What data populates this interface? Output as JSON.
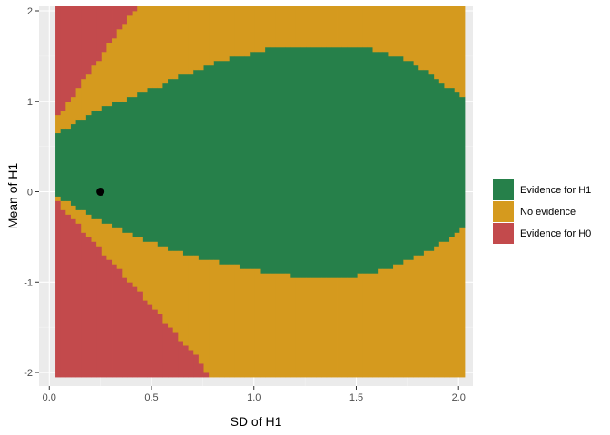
{
  "chart_data": {
    "type": "heatmap",
    "xlabel": "SD of H1",
    "ylabel": "Mean of H1",
    "xlim": [
      -0.05,
      2.07
    ],
    "ylim": [
      -2.15,
      2.05
    ],
    "x_ticks": [
      0.0,
      0.5,
      1.0,
      1.5,
      2.0
    ],
    "x_tick_labels": [
      "0.0",
      "0.5",
      "1.0",
      "1.5",
      "2.0"
    ],
    "y_ticks": [
      -2,
      -1,
      0,
      1,
      2
    ],
    "y_tick_labels": [
      "-2",
      "-1",
      "0",
      "1",
      "2"
    ],
    "grid": true,
    "legend_position": "right",
    "tile_grid": {
      "x_range": [
        0.03,
        2.03
      ],
      "y_range": [
        -2.05,
        2.05
      ],
      "columns": 80,
      "rows": 82
    },
    "categories": [
      {
        "key": "h1",
        "label": "Evidence for H1",
        "color": "#26804a"
      },
      {
        "key": "none",
        "label": "No evidence",
        "color": "#d59a1e"
      },
      {
        "key": "h0",
        "label": "Evidence for H0",
        "color": "#c34a4c"
      }
    ],
    "region_boundaries": {
      "h1_upper": {
        "sd": [
          0.03,
          0.05,
          0.1,
          0.15,
          0.2,
          0.25,
          0.3,
          0.35,
          0.4,
          0.45,
          0.5,
          0.55,
          0.6,
          0.7,
          0.8,
          0.9,
          1.0,
          1.05,
          1.1,
          1.2,
          1.3,
          1.4,
          1.5,
          1.6,
          1.65,
          1.7,
          1.75,
          1.8,
          1.85,
          1.9,
          1.95,
          2.03
        ],
        "mean": [
          0.65,
          0.68,
          0.73,
          0.8,
          0.86,
          0.92,
          0.96,
          1.01,
          1.05,
          1.1,
          1.14,
          1.18,
          1.24,
          1.33,
          1.42,
          1.48,
          1.54,
          1.57,
          1.6,
          1.61,
          1.61,
          1.61,
          1.61,
          1.57,
          1.53,
          1.49,
          1.45,
          1.38,
          1.32,
          1.25,
          1.16,
          1.02
        ]
      },
      "h1_lower": {
        "sd": [
          0.03,
          0.05,
          0.1,
          0.15,
          0.2,
          0.25,
          0.3,
          0.35,
          0.4,
          0.45,
          0.5,
          0.55,
          0.6,
          0.7,
          0.8,
          0.9,
          1.0,
          1.05,
          1.1,
          1.2,
          1.3,
          1.4,
          1.5,
          1.55,
          1.6,
          1.65,
          1.7,
          1.75,
          1.8,
          1.85,
          1.9,
          1.95,
          2.03
        ],
        "mean": [
          -0.03,
          -0.06,
          -0.12,
          -0.19,
          -0.26,
          -0.33,
          -0.38,
          -0.43,
          -0.47,
          -0.51,
          -0.56,
          -0.6,
          -0.63,
          -0.7,
          -0.76,
          -0.81,
          -0.85,
          -0.88,
          -0.9,
          -0.93,
          -0.93,
          -0.93,
          -0.93,
          -0.9,
          -0.88,
          -0.85,
          -0.81,
          -0.76,
          -0.71,
          -0.66,
          -0.6,
          -0.52,
          -0.38
        ]
      },
      "h0_upper": {
        "sd": [
          0.03,
          0.05,
          0.1,
          0.15,
          0.2,
          0.25,
          0.3,
          0.35,
          0.4,
          0.45,
          0.46
        ],
        "mean": [
          0.79,
          0.85,
          1.01,
          1.17,
          1.33,
          1.49,
          1.65,
          1.81,
          1.97,
          2.05,
          2.05
        ]
      },
      "h0_lower": {
        "sd": [
          0.03,
          0.05,
          0.1,
          0.15,
          0.2,
          0.25,
          0.3,
          0.35,
          0.4,
          0.45,
          0.5,
          0.55,
          0.6,
          0.65,
          0.7,
          0.75,
          0.78
        ],
        "mean": [
          -0.06,
          -0.13,
          -0.27,
          -0.39,
          -0.51,
          -0.63,
          -0.76,
          -0.89,
          -1.01,
          -1.14,
          -1.27,
          -1.39,
          -1.52,
          -1.65,
          -1.77,
          -1.9,
          -2.05
        ]
      }
    },
    "point": {
      "x": 0.25,
      "y": 0.0,
      "color": "#000000"
    }
  }
}
